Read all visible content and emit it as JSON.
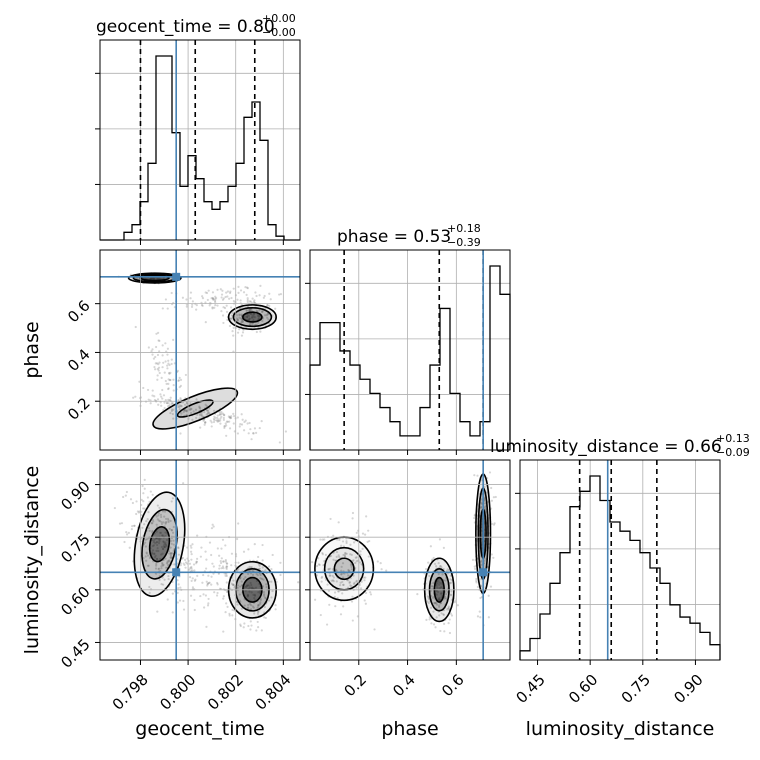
{
  "chart_data": {
    "type": "corner",
    "parameters": [
      "geocent_time",
      "phase",
      "luminosity_distance"
    ],
    "truth_color": "#4682b4",
    "truths": {
      "geocent_time": 0.7995,
      "phase": 0.71,
      "luminosity_distance": 0.65
    },
    "titles": {
      "geocent_time": {
        "name": "geocent_time",
        "median": "0.80",
        "plus": "+0.00",
        "minus": "−0.00"
      },
      "phase": {
        "name": "phase",
        "median": "0.53",
        "plus": "+0.18",
        "minus": "−0.39"
      },
      "luminosity_distance": {
        "name": "luminosity_distance",
        "median": "0.66",
        "plus": "+0.13",
        "minus": "−0.09"
      }
    },
    "axes": {
      "geocent_time": {
        "range": [
          0.7963,
          0.8047
        ],
        "ticks": [
          0.798,
          0.8,
          0.802,
          0.804
        ],
        "tick_labels": [
          "0.798",
          "0.800",
          "0.802",
          "0.804"
        ],
        "label": "geocent_time"
      },
      "phase": {
        "range": [
          0.0,
          0.82
        ],
        "ticks": [
          0.2,
          0.4,
          0.6
        ],
        "tick_labels": [
          "0.2",
          "0.4",
          "0.6"
        ],
        "label": "phase"
      },
      "luminosity_distance": {
        "range": [
          0.4,
          0.97
        ],
        "ticks": [
          0.45,
          0.6,
          0.75,
          0.9
        ],
        "tick_labels": [
          "0.45",
          "0.60",
          "0.75",
          "0.90"
        ],
        "label": "luminosity_distance"
      }
    },
    "quantiles": {
      "geocent_time": [
        0.798,
        0.8003,
        0.8028
      ],
      "phase": [
        0.14,
        0.53,
        0.71
      ],
      "luminosity_distance": [
        0.57,
        0.66,
        0.79
      ]
    },
    "histograms": {
      "geocent_time": [
        0,
        0,
        0,
        1,
        2,
        5,
        10,
        24,
        24,
        14,
        7,
        11,
        8,
        5,
        4,
        5,
        7,
        10,
        16,
        18,
        13,
        2,
        0.5,
        0,
        0
      ],
      "phase": [
        6,
        9,
        9,
        7,
        6,
        5,
        4,
        3,
        2,
        1,
        1,
        3,
        6,
        10,
        4,
        2,
        1,
        2,
        13,
        11
      ],
      "luminosity_distance": [
        0.3,
        0.7,
        1.5,
        2.5,
        3.5,
        5.0,
        5.5,
        6.0,
        5.2,
        4.5,
        4.2,
        3.9,
        3.5,
        3.0,
        2.5,
        1.8,
        1.4,
        1.2,
        0.9,
        0.5
      ]
    },
    "grid": true
  }
}
